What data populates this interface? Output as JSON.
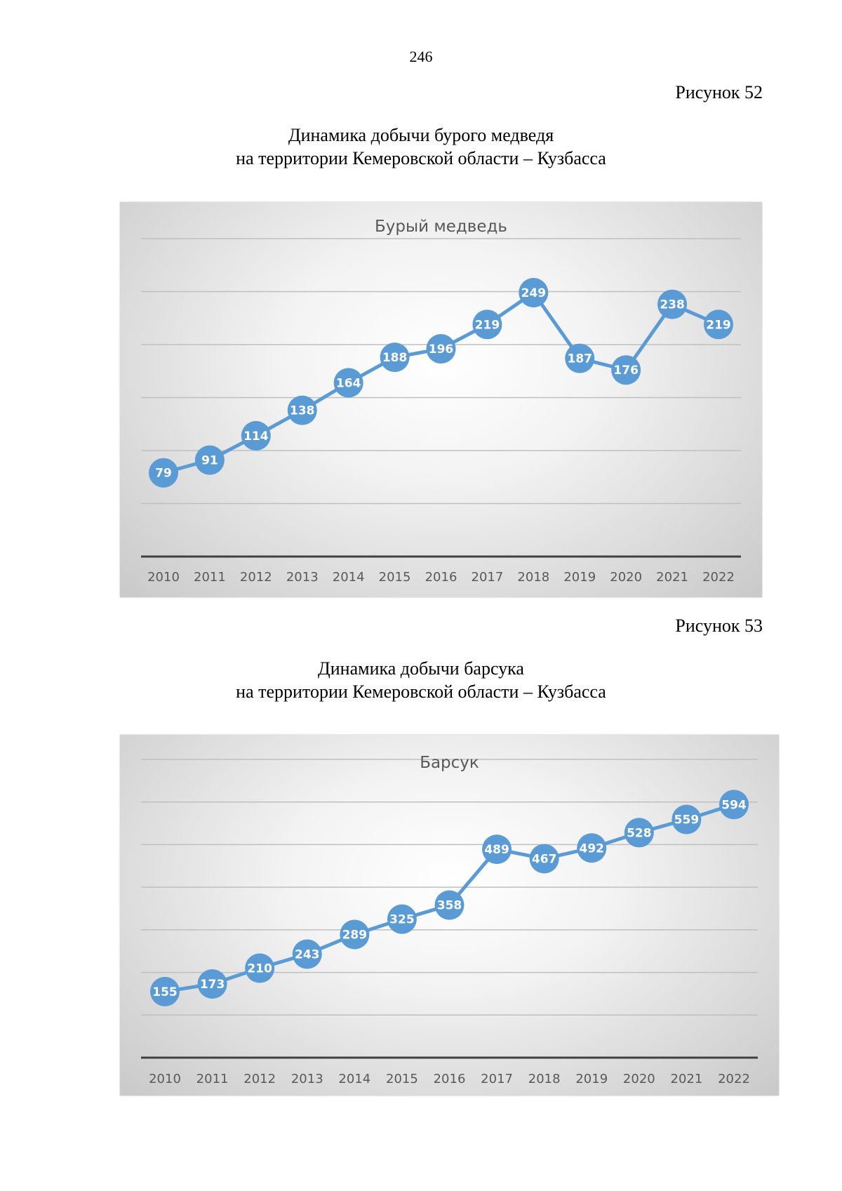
{
  "page_number": "246",
  "figures": [
    {
      "label": "Рисунок 52",
      "caption_line1": "Динамика добычи бурого медведя",
      "caption_line2": "на территории Кемеровской области – Кузбасса"
    },
    {
      "label": "Рисунок 53",
      "caption_line1": "Динамика добычи барсука",
      "caption_line2": "на территории Кемеровской области – Кузбасса"
    }
  ],
  "colors": {
    "series": "#5b9bd5",
    "gridline": "#bfbfbf",
    "axis": "#404040",
    "text": "#595959"
  },
  "chart_data": [
    {
      "type": "line",
      "title": "Бурый медведь",
      "categories": [
        "2010",
        "2011",
        "2012",
        "2013",
        "2014",
        "2015",
        "2016",
        "2017",
        "2018",
        "2019",
        "2020",
        "2021",
        "2022"
      ],
      "series": [
        {
          "values": [
            79,
            91,
            114,
            138,
            164,
            188,
            196,
            219,
            249,
            187,
            176,
            238,
            219
          ]
        }
      ],
      "data_labels": true,
      "markers": "circle",
      "grid": true,
      "ylim": [
        0,
        300
      ],
      "legend": "none"
    },
    {
      "type": "line",
      "title": "Барсук",
      "categories": [
        "2010",
        "2011",
        "2012",
        "2013",
        "2014",
        "2015",
        "2016",
        "2017",
        "2018",
        "2019",
        "2020",
        "2021",
        "2022"
      ],
      "series": [
        {
          "values": [
            155,
            173,
            210,
            243,
            289,
            325,
            358,
            489,
            467,
            492,
            528,
            559,
            594
          ]
        }
      ],
      "data_labels": true,
      "markers": "circle",
      "grid": true,
      "ylim": [
        0,
        700
      ],
      "legend": "none"
    }
  ]
}
